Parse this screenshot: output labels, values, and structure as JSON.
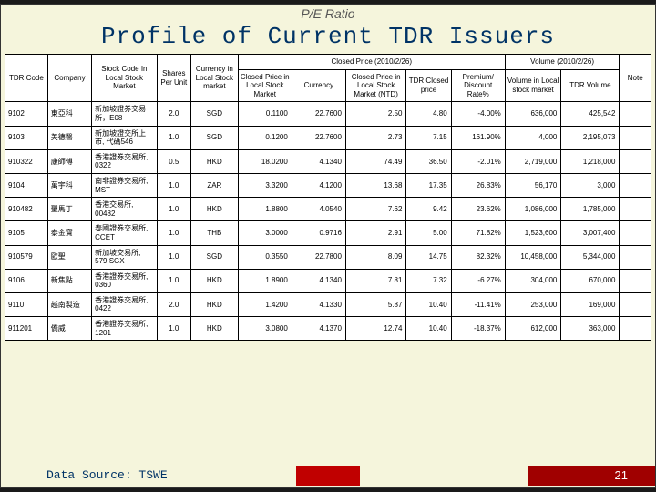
{
  "subtitle": "P/E Ratio",
  "title": "Profile of Current TDR Issuers",
  "group_headers": {
    "closed_price": "Closed Price (2010/2/26)",
    "volume": "Volume (2010/2/26)"
  },
  "headers": {
    "tdr_code": "TDR Code",
    "company": "Company",
    "stock_code": "Stock Code In Local Stock Market",
    "shares": "Shares Per Unit",
    "currency": "Currency in Local Stock market",
    "closed_local": "Closed Price in Local Stock Market",
    "currency2": "Currency",
    "closed_ntd": "Closed Price in Local Stock Market (NTD)",
    "tdr_closed": "TDR Closed price",
    "premium": "Premium/ Discount Rate%",
    "vol_local": "Volume in Local stock market",
    "tdr_vol": "TDR Volume",
    "note": "Note"
  },
  "rows": [
    {
      "tdr": "9102",
      "comp": "東亞科",
      "stock": "新加坡證券交易所，E08",
      "share": "2.0",
      "curr": "SGD",
      "cp1": "0.1100",
      "cur2": "22.7600",
      "cp2": "2.50",
      "tdrp": "4.80",
      "prem": "-4.00%",
      "vol1": "636,000",
      "vol2": "425,542",
      "note": ""
    },
    {
      "tdr": "9103",
      "comp": "美德醫",
      "stock": "新加坡證交所上市, 代碼546",
      "share": "1.0",
      "curr": "SGD",
      "cp1": "0.1200",
      "cur2": "22.7600",
      "cp2": "2.73",
      "tdrp": "7.15",
      "prem": "161.90%",
      "vol1": "4,000",
      "vol2": "2,195,073",
      "note": ""
    },
    {
      "tdr": "910322",
      "comp": "康師傅",
      "stock": "香港證券交易所, 0322",
      "share": "0.5",
      "curr": "HKD",
      "cp1": "18.0200",
      "cur2": "4.1340",
      "cp2": "74.49",
      "tdrp": "36.50",
      "prem": "-2.01%",
      "vol1": "2,719,000",
      "vol2": "1,218,000",
      "note": ""
    },
    {
      "tdr": "9104",
      "comp": "萬宇科",
      "stock": "南非證券交易所, MST",
      "share": "1.0",
      "curr": "ZAR",
      "cp1": "3.3200",
      "cur2": "4.1200",
      "cp2": "13.68",
      "tdrp": "17.35",
      "prem": "26.83%",
      "vol1": "56,170",
      "vol2": "3,000",
      "note": ""
    },
    {
      "tdr": "910482",
      "comp": "聖馬丁",
      "stock": "香港交易所, 00482",
      "share": "1.0",
      "curr": "HKD",
      "cp1": "1.8800",
      "cur2": "4.0540",
      "cp2": "7.62",
      "tdrp": "9.42",
      "prem": "23.62%",
      "vol1": "1,086,000",
      "vol2": "1,785,000",
      "note": ""
    },
    {
      "tdr": "9105",
      "comp": "泰金寶",
      "stock": "泰國證券交易所, CCET",
      "share": "1.0",
      "curr": "THB",
      "cp1": "3.0000",
      "cur2": "0.9716",
      "cp2": "2.91",
      "tdrp": "5.00",
      "prem": "71.82%",
      "vol1": "1,523,600",
      "vol2": "3,007,400",
      "note": ""
    },
    {
      "tdr": "910579",
      "comp": "歐聖",
      "stock": "新加坡交易所, 579.SGX",
      "share": "1.0",
      "curr": "SGD",
      "cp1": "0.3550",
      "cur2": "22.7800",
      "cp2": "8.09",
      "tdrp": "14.75",
      "prem": "82.32%",
      "vol1": "10,458,000",
      "vol2": "5,344,000",
      "note": ""
    },
    {
      "tdr": "9106",
      "comp": "新焦點",
      "stock": "香港證券交易所, 0360",
      "share": "1.0",
      "curr": "HKD",
      "cp1": "1.8900",
      "cur2": "4.1340",
      "cp2": "7.81",
      "tdrp": "7.32",
      "prem": "-6.27%",
      "vol1": "304,000",
      "vol2": "670,000",
      "note": ""
    },
    {
      "tdr": "9110",
      "comp": "越南製造",
      "stock": "香港證券交易所, 0422",
      "share": "2.0",
      "curr": "HKD",
      "cp1": "1.4200",
      "cur2": "4.1330",
      "cp2": "5.87",
      "tdrp": "10.40",
      "prem": "-11.41%",
      "vol1": "253,000",
      "vol2": "169,000",
      "note": ""
    },
    {
      "tdr": "911201",
      "comp": "僑威",
      "stock": "香港證券交易所, 1201",
      "share": "1.0",
      "curr": "HKD",
      "cp1": "3.0800",
      "cur2": "4.1370",
      "cp2": "12.74",
      "tdrp": "10.40",
      "prem": "-18.37%",
      "vol1": "612,000",
      "vol2": "363,000",
      "note": ""
    }
  ],
  "footer": "Data Source: TSWE",
  "page": "21",
  "colors": {
    "background": "#f5f5dc",
    "title": "#003366",
    "red": "#c00000"
  }
}
